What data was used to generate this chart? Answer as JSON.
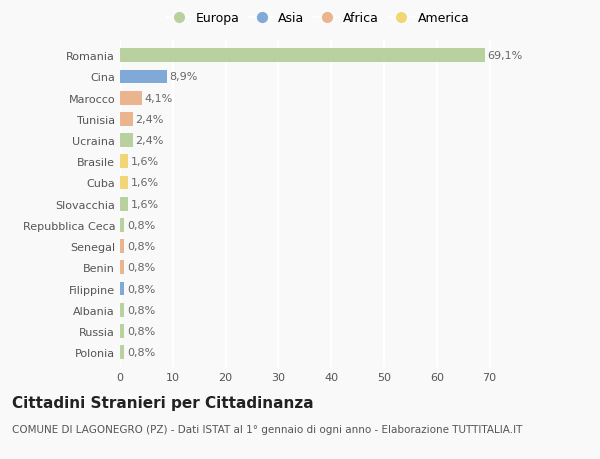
{
  "categories": [
    "Romania",
    "Cina",
    "Marocco",
    "Tunisia",
    "Ucraina",
    "Brasile",
    "Cuba",
    "Slovacchia",
    "Repubblica Ceca",
    "Senegal",
    "Benin",
    "Filippine",
    "Albania",
    "Russia",
    "Polonia"
  ],
  "values": [
    69.1,
    8.9,
    4.1,
    2.4,
    2.4,
    1.6,
    1.6,
    1.6,
    0.8,
    0.8,
    0.8,
    0.8,
    0.8,
    0.8,
    0.8
  ],
  "labels": [
    "69,1%",
    "8,9%",
    "4,1%",
    "2,4%",
    "2,4%",
    "1,6%",
    "1,6%",
    "1,6%",
    "0,8%",
    "0,8%",
    "0,8%",
    "0,8%",
    "0,8%",
    "0,8%",
    "0,8%"
  ],
  "continents": [
    "Europa",
    "Asia",
    "Africa",
    "Africa",
    "Europa",
    "America",
    "America",
    "Europa",
    "Europa",
    "Africa",
    "Africa",
    "Asia",
    "Europa",
    "Europa",
    "Europa"
  ],
  "continent_colors": {
    "Europa": "#aec98f",
    "Asia": "#6b9bd2",
    "Africa": "#e8a87c",
    "America": "#f0d060"
  },
  "legend_order": [
    "Europa",
    "Asia",
    "Africa",
    "America"
  ],
  "xlim": [
    0,
    75
  ],
  "xticks": [
    0,
    10,
    20,
    30,
    40,
    50,
    60,
    70
  ],
  "title": "Cittadini Stranieri per Cittadinanza",
  "subtitle": "COMUNE DI LAGONEGRO (PZ) - Dati ISTAT al 1° gennaio di ogni anno - Elaborazione TUTTITALIA.IT",
  "background_color": "#f9f9f9",
  "bar_height": 0.65,
  "grid_color": "#ffffff",
  "title_fontsize": 11,
  "subtitle_fontsize": 7.5,
  "label_fontsize": 8,
  "tick_fontsize": 8,
  "legend_fontsize": 9
}
